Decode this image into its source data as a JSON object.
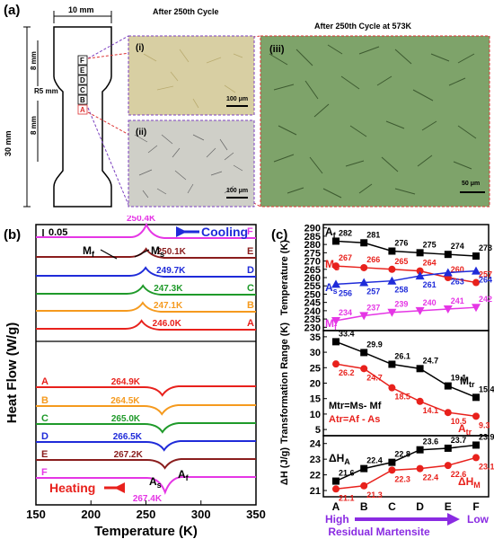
{
  "panel_labels": {
    "a": "(a)",
    "b": "(b)",
    "c": "(c)"
  },
  "panel_a": {
    "width_label": "10 mm",
    "length_label": "30 mm",
    "radius_label": "R5 mm",
    "seg_upper": "8 mm",
    "seg_lower": "8 mm",
    "spots": [
      "F",
      "E",
      "D",
      "C",
      "B",
      "A"
    ],
    "title_cycle": "After 250th Cycle",
    "title_cycle_hot": "After 250th Cycle at 573K",
    "img_i": "(i)",
    "img_ii": "(ii)",
    "img_iii": "(iii)",
    "scale_100a": "100 μm",
    "scale_100b": "100 μm",
    "scale_50": "50 μm"
  },
  "colors": {
    "A": "#e8211c",
    "B": "#f59a1e",
    "C": "#1f9a2a",
    "D": "#1f2bd9",
    "E": "#8a1d1d",
    "F": "#e536e5",
    "black": "#000000",
    "purple": "#8a2be2"
  },
  "chart_data": [
    {
      "type": "line",
      "title": "",
      "xlabel": "Temperature (K)",
      "ylabel": "Heat Flow (W/g)",
      "xlim": [
        150,
        350
      ],
      "xticks": [
        150,
        200,
        250,
        300,
        350
      ],
      "scale_label": "0.05",
      "cooling_label": "Cooling",
      "heating_label": "Heating",
      "Mf_label": "M",
      "Mf_sub": "f",
      "Ms_label": "M",
      "Ms_sub": "s",
      "As_label": "A",
      "As_sub": "s",
      "Af_label": "A",
      "Af_sub": "f",
      "cooling": [
        {
          "name": "F",
          "peak_T": 250.4,
          "peak_label": "250.4K"
        },
        {
          "name": "E",
          "peak_T": 250.1,
          "peak_label": "250.1K"
        },
        {
          "name": "D",
          "peak_T": 249.7,
          "peak_label": "249.7K"
        },
        {
          "name": "C",
          "peak_T": 247.3,
          "peak_label": "247.3K"
        },
        {
          "name": "B",
          "peak_T": 247.1,
          "peak_label": "247.1K"
        },
        {
          "name": "A",
          "peak_T": 246.0,
          "peak_label": "246.0K"
        }
      ],
      "heating": [
        {
          "name": "A",
          "peak_T": 264.9,
          "peak_label": "264.9K"
        },
        {
          "name": "B",
          "peak_T": 264.5,
          "peak_label": "264.5K"
        },
        {
          "name": "C",
          "peak_T": 265.0,
          "peak_label": "265.0K"
        },
        {
          "name": "D",
          "peak_T": 266.5,
          "peak_label": "266.5K"
        },
        {
          "name": "E",
          "peak_T": 267.2,
          "peak_label": "267.2K"
        },
        {
          "name": "F",
          "peak_T": 267.4,
          "peak_label": "267.4K"
        }
      ]
    },
    {
      "type": "line",
      "xlabel": "",
      "categories": [
        "A",
        "B",
        "C",
        "D",
        "E",
        "F"
      ],
      "cat_high": "High",
      "cat_low": "Low",
      "cat_caption": "Residual Martensite",
      "subplots": [
        {
          "ylabel": "Temperature (K)",
          "ylim": [
            228,
            292
          ],
          "yticks": [
            230,
            235,
            240,
            245,
            250,
            255,
            260,
            265,
            270,
            275,
            280,
            285,
            290
          ],
          "series": [
            {
              "name": "Af",
              "label": "A",
              "sub": "f",
              "color": "black",
              "marker": "square",
              "values": [
                282,
                281,
                276,
                275,
                274,
                273
              ]
            },
            {
              "name": "Ms",
              "label": "M",
              "sub": "S",
              "color": "A",
              "marker": "circle",
              "values": [
                267,
                266,
                265,
                264,
                260,
                257
              ]
            },
            {
              "name": "As",
              "label": "A",
              "sub": "s",
              "color": "D",
              "marker": "triangle",
              "values": [
                256,
                257,
                258,
                261,
                263,
                264
              ]
            },
            {
              "name": "Mf",
              "label": "M",
              "sub": "f",
              "color": "F",
              "marker": "tri-down",
              "values": [
                234,
                237,
                239,
                240,
                241,
                242
              ]
            }
          ]
        },
        {
          "ylabel": "Transformation Range (K)",
          "ylim": [
            3,
            37
          ],
          "yticks": [
            5,
            10,
            15,
            20,
            25,
            30,
            35
          ],
          "eq1": "Mtr=Ms- Mf",
          "eq2": "Atr=Af - As",
          "series": [
            {
              "name": "Mtr",
              "label": "M",
              "sub": "tr",
              "color": "black",
              "marker": "square",
              "values": [
                33.4,
                29.9,
                26.1,
                24.7,
                19.1,
                15.4
              ]
            },
            {
              "name": "Atr",
              "label": "A",
              "sub": "tr",
              "color": "A",
              "marker": "circle",
              "values": [
                26.2,
                24.7,
                18.5,
                14.1,
                10.5,
                9.3
              ]
            }
          ]
        },
        {
          "ylabel": "ΔH (J/g)",
          "ylim": [
            20.6,
            24.5
          ],
          "yticks": [
            21,
            22,
            23,
            24
          ],
          "series": [
            {
              "name": "ΔHA",
              "label": "ΔH",
              "sub": "A",
              "color": "black",
              "marker": "square",
              "values": [
                21.6,
                22.4,
                22.8,
                23.6,
                23.7,
                23.9
              ]
            },
            {
              "name": "ΔHM",
              "label": "ΔH",
              "sub": "M",
              "color": "A",
              "marker": "circle",
              "values": [
                21.1,
                21.3,
                22.3,
                22.4,
                22.6,
                23.1
              ]
            }
          ]
        }
      ]
    }
  ]
}
